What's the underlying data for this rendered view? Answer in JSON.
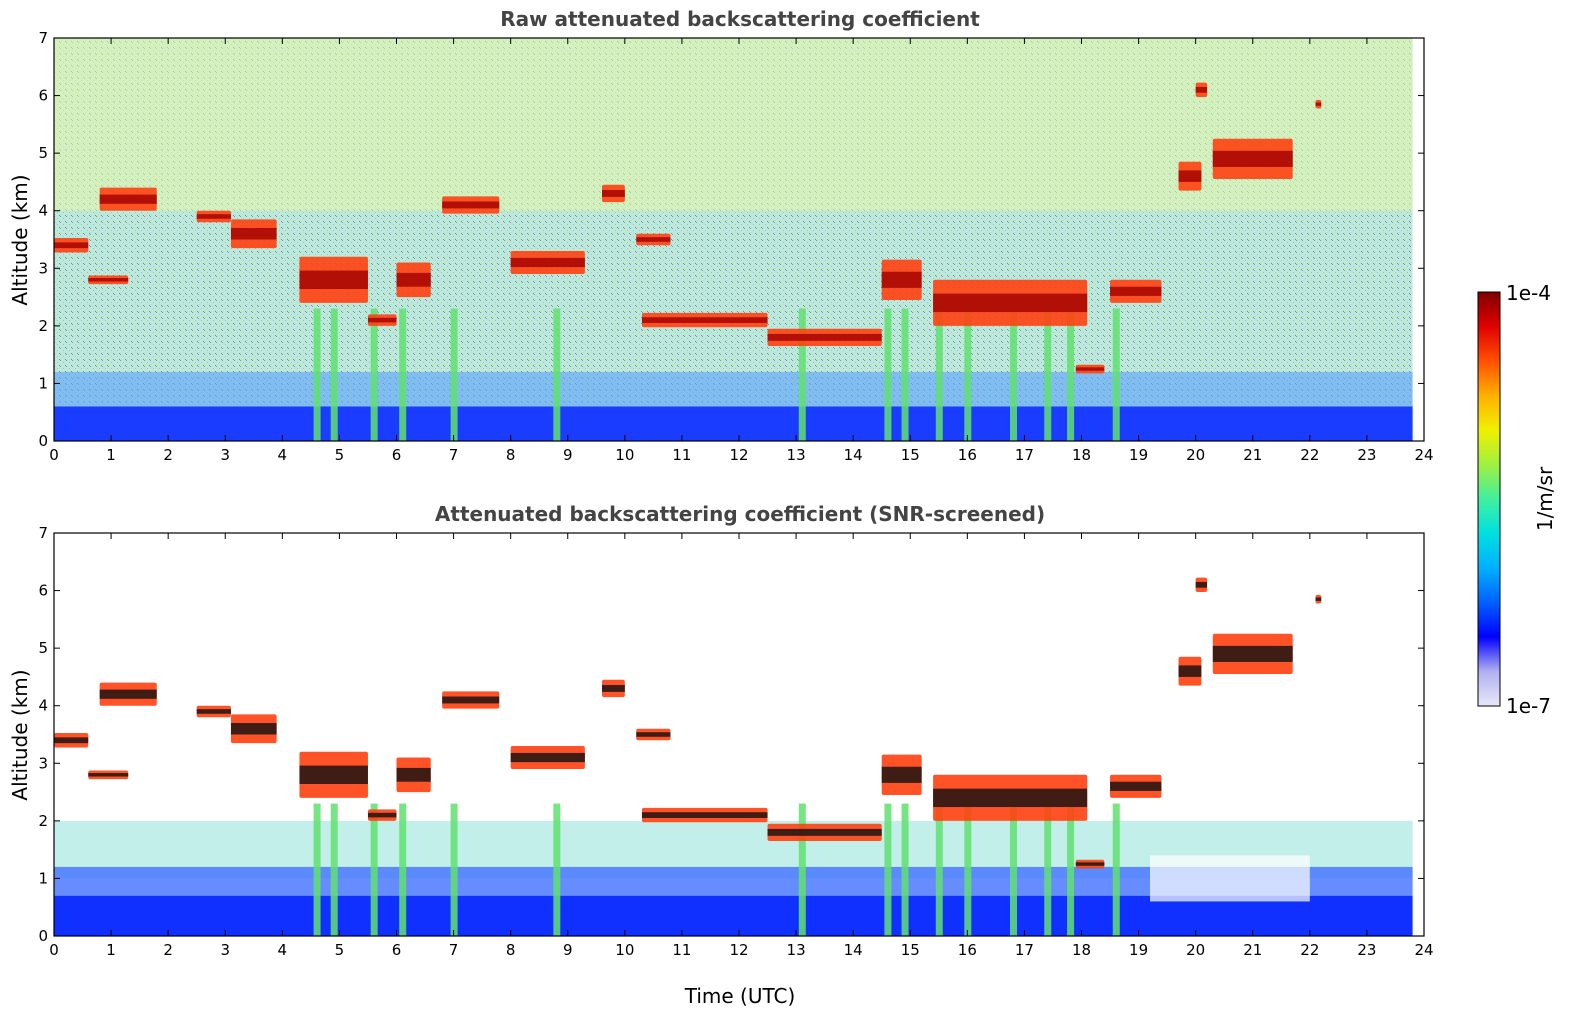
{
  "figure": {
    "colorbar": {
      "max_label": "1e-4",
      "min_label": "1e-7",
      "unit_label": "1/m/sr",
      "colormap": [
        "#e8e8f8",
        "#b0b0f0",
        "#0000ff",
        "#0060ff",
        "#00b0ff",
        "#00e0e0",
        "#40f0a0",
        "#a0f040",
        "#f0f000",
        "#ffb000",
        "#ff5000",
        "#e00000",
        "#800000"
      ]
    }
  },
  "chart_data": [
    {
      "type": "heatmap",
      "title": "Raw attenuated backscattering coefficient",
      "xlabel": "",
      "ylabel": "Altitude (km)",
      "xlim": [
        0,
        24
      ],
      "ylim": [
        0,
        7
      ],
      "xticks": [
        0,
        1,
        2,
        3,
        4,
        5,
        6,
        7,
        8,
        9,
        10,
        11,
        12,
        13,
        14,
        15,
        16,
        17,
        18,
        19,
        20,
        21,
        22,
        23,
        24
      ],
      "yticks": [
        0,
        1,
        2,
        3,
        4,
        5,
        6,
        7
      ],
      "data_end_hour": 23.8,
      "screened": false,
      "cloud_layers": [
        {
          "t0": 0.0,
          "t1": 0.6,
          "alt": 3.4,
          "thick": 0.25
        },
        {
          "t0": 0.6,
          "t1": 1.3,
          "alt": 2.8,
          "thick": 0.15
        },
        {
          "t0": 0.8,
          "t1": 1.8,
          "alt": 4.2,
          "thick": 0.4
        },
        {
          "t0": 2.5,
          "t1": 3.1,
          "alt": 3.9,
          "thick": 0.2
        },
        {
          "t0": 3.1,
          "t1": 3.9,
          "alt": 3.6,
          "thick": 0.5
        },
        {
          "t0": 4.3,
          "t1": 5.5,
          "alt": 2.8,
          "thick": 0.8
        },
        {
          "t0": 5.5,
          "t1": 6.0,
          "alt": 2.1,
          "thick": 0.2
        },
        {
          "t0": 6.0,
          "t1": 6.6,
          "alt": 2.8,
          "thick": 0.6
        },
        {
          "t0": 6.8,
          "t1": 7.8,
          "alt": 4.1,
          "thick": 0.3
        },
        {
          "t0": 8.0,
          "t1": 9.3,
          "alt": 3.1,
          "thick": 0.4
        },
        {
          "t0": 9.6,
          "t1": 10.0,
          "alt": 4.3,
          "thick": 0.3
        },
        {
          "t0": 10.2,
          "t1": 10.8,
          "alt": 3.5,
          "thick": 0.2
        },
        {
          "t0": 10.3,
          "t1": 12.5,
          "alt": 2.1,
          "thick": 0.25
        },
        {
          "t0": 12.5,
          "t1": 14.5,
          "alt": 1.8,
          "thick": 0.3
        },
        {
          "t0": 14.5,
          "t1": 15.2,
          "alt": 2.8,
          "thick": 0.7
        },
        {
          "t0": 15.4,
          "t1": 18.1,
          "alt": 2.4,
          "thick": 0.8
        },
        {
          "t0": 17.9,
          "t1": 18.4,
          "alt": 1.25,
          "thick": 0.15
        },
        {
          "t0": 18.5,
          "t1": 19.4,
          "alt": 2.6,
          "thick": 0.4
        },
        {
          "t0": 19.7,
          "t1": 20.1,
          "alt": 4.6,
          "thick": 0.5
        },
        {
          "t0": 20.0,
          "t1": 20.2,
          "alt": 6.1,
          "thick": 0.25
        },
        {
          "t0": 20.3,
          "t1": 21.7,
          "alt": 4.9,
          "thick": 0.7
        },
        {
          "t0": 22.1,
          "t1": 22.2,
          "alt": 5.85,
          "thick": 0.15
        }
      ],
      "precipitation_streaks": [
        4.6,
        4.9,
        5.6,
        6.1,
        7.0,
        8.8,
        13.1,
        14.6,
        14.9,
        15.5,
        16.0,
        16.8,
        17.4,
        17.8,
        18.6
      ]
    },
    {
      "type": "heatmap",
      "title": "Attenuated backscattering coefficient (SNR-screened)",
      "xlabel": "Time (UTC)",
      "ylabel": "Altitude (km)",
      "xlim": [
        0,
        24
      ],
      "ylim": [
        0,
        7
      ],
      "xticks": [
        0,
        1,
        2,
        3,
        4,
        5,
        6,
        7,
        8,
        9,
        10,
        11,
        12,
        13,
        14,
        15,
        16,
        17,
        18,
        19,
        20,
        21,
        22,
        23,
        24
      ],
      "yticks": [
        0,
        1,
        2,
        3,
        4,
        5,
        6,
        7
      ],
      "data_end_hour": 23.8,
      "screened": true
    }
  ]
}
